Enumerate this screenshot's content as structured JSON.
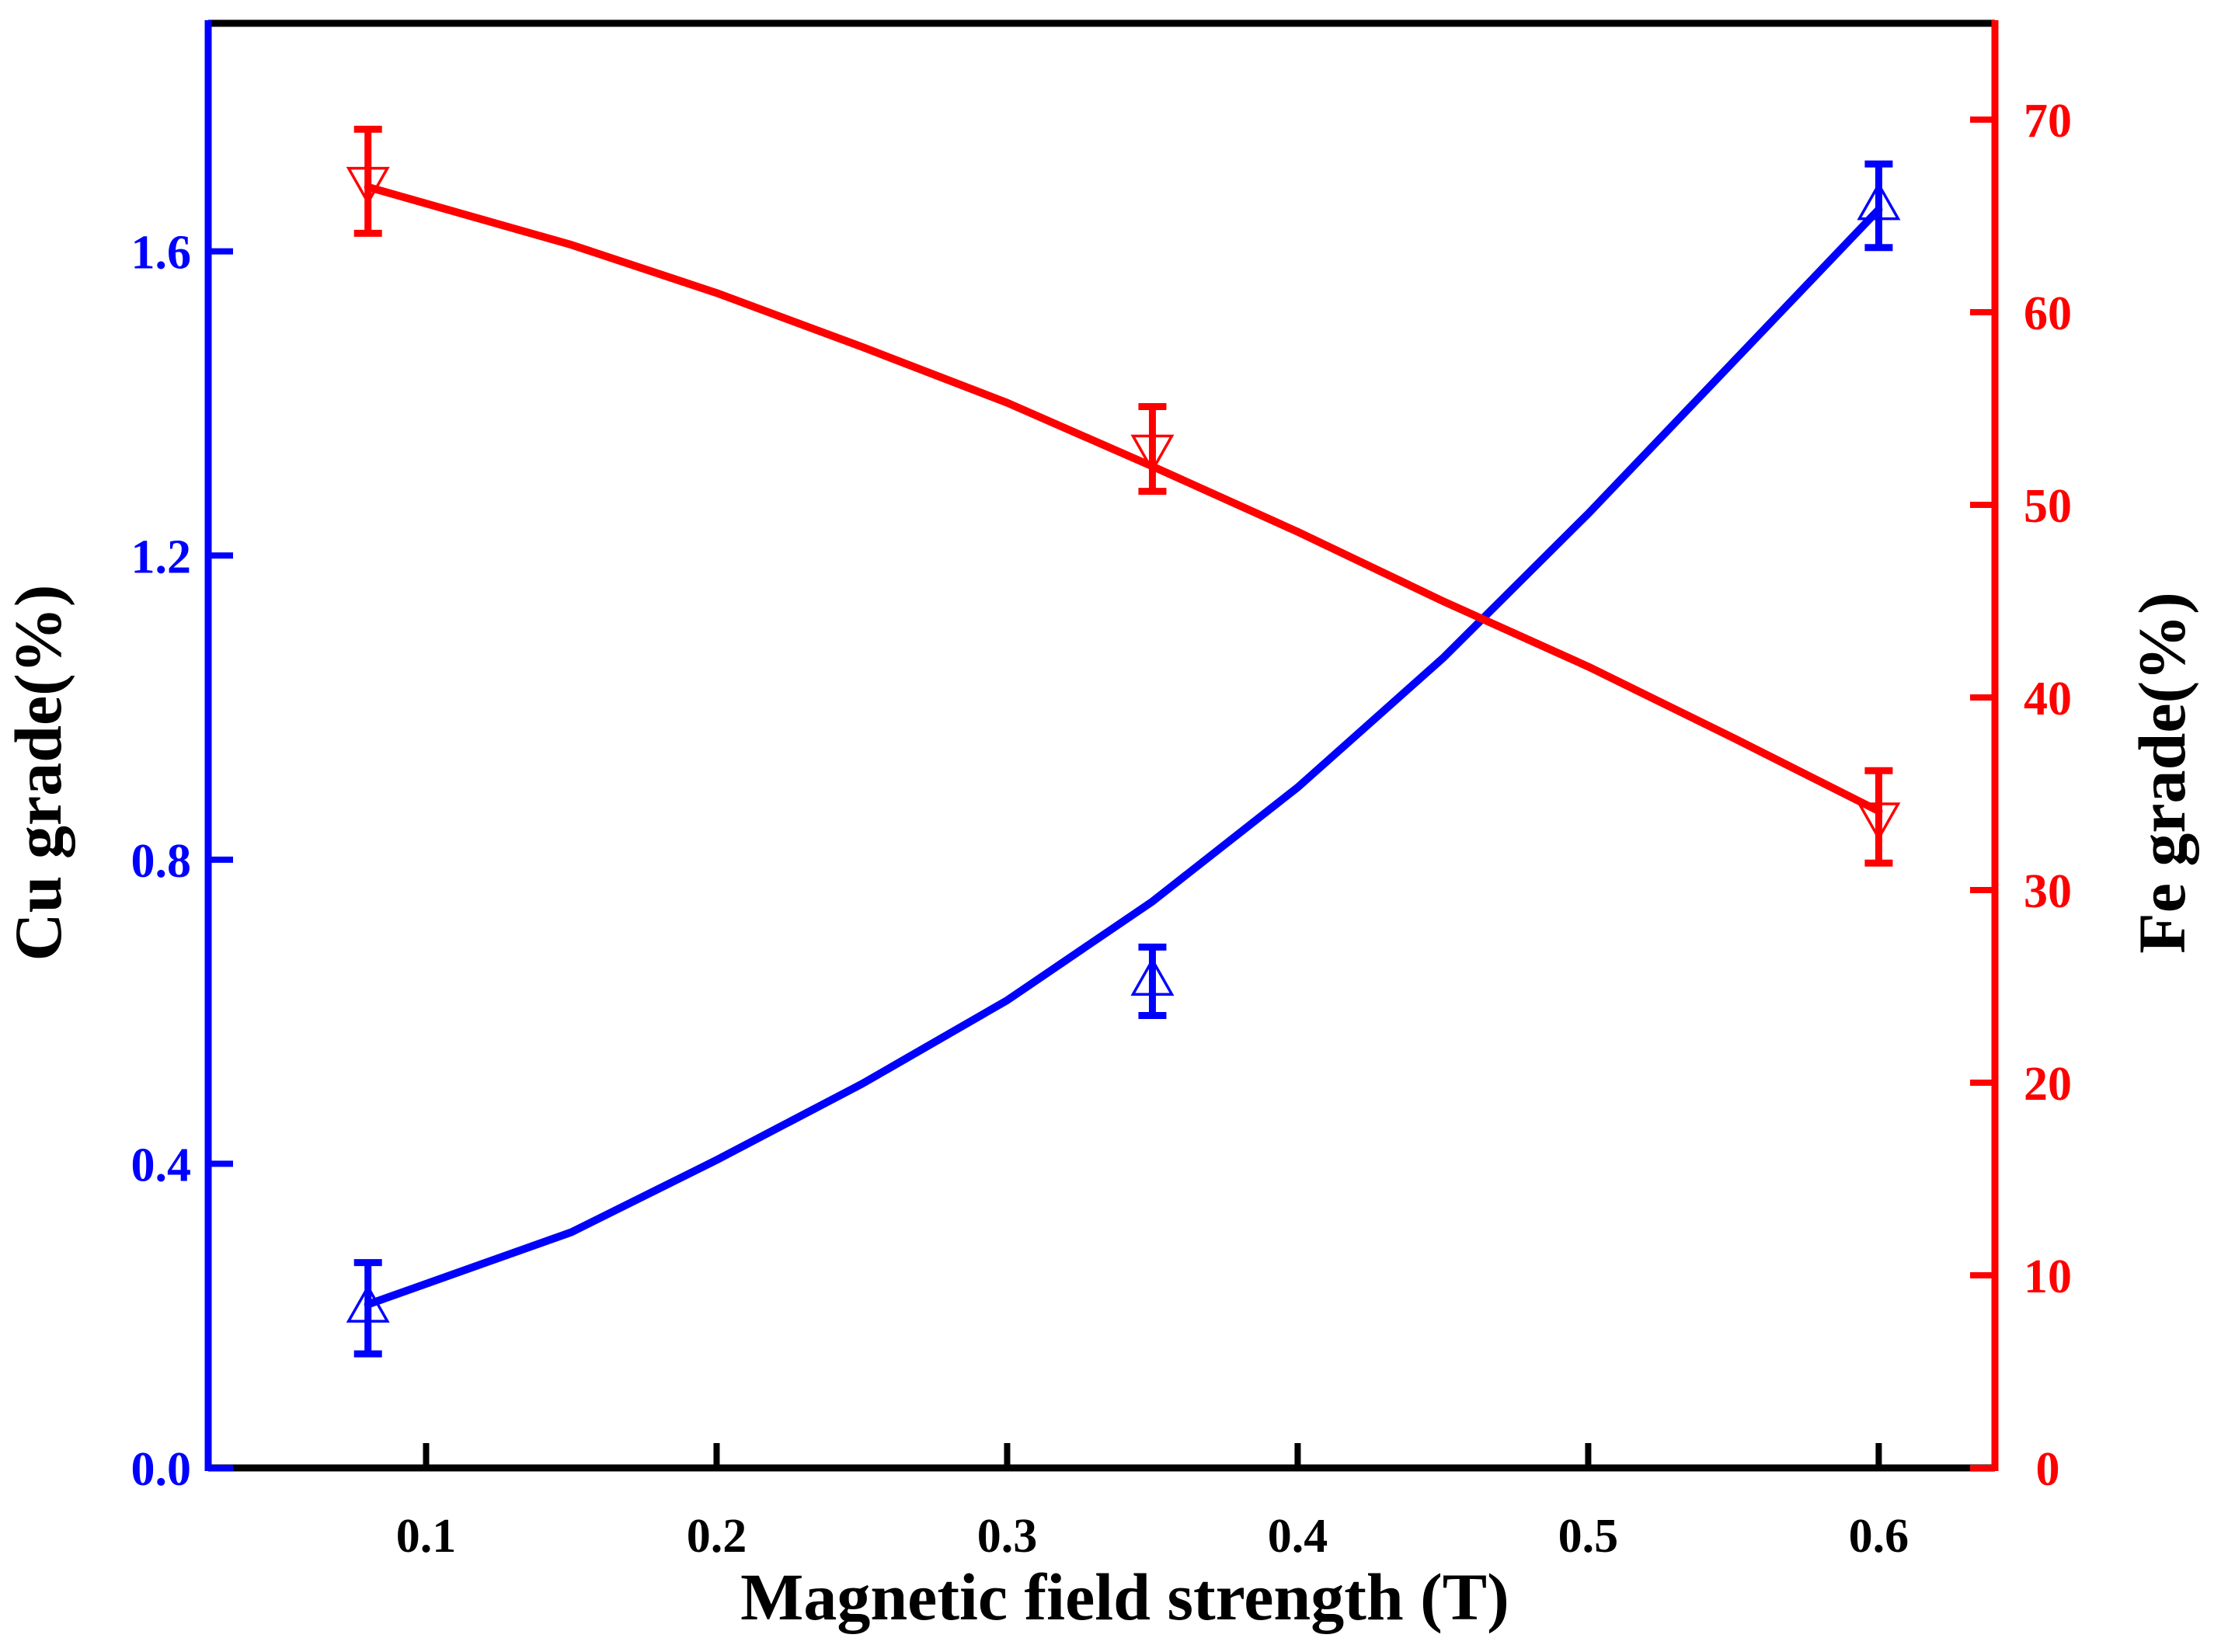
{
  "chart_data": {
    "type": "line",
    "xlabel": "Magnetic field strength (T)",
    "ylabel_left": "Cu grade(%)",
    "ylabel_right": "Fe grade(%)",
    "xlim": [
      0.025,
      0.64
    ],
    "ylim_left": [
      0,
      1.9
    ],
    "ylim_right": [
      0,
      75
    ],
    "x_ticks": [
      0.1,
      0.2,
      0.3,
      0.4,
      0.5,
      0.6
    ],
    "x_tick_labels": [
      "0.1",
      "0.2",
      "0.3",
      "0.4",
      "0.5",
      "0.6"
    ],
    "y_left_ticks": [
      0.0,
      0.4,
      0.8,
      1.2,
      1.6
    ],
    "y_left_tick_labels": [
      "0.0",
      "0.4",
      "0.8",
      "1.2",
      "1.6"
    ],
    "y_right_ticks": [
      0,
      10,
      20,
      30,
      40,
      50,
      60,
      70
    ],
    "y_right_tick_labels": [
      "0",
      "10",
      "20",
      "30",
      "40",
      "50",
      "60",
      "70"
    ],
    "left_color": "#0000ff",
    "right_color": "#ff0000",
    "frame_color": "#000000",
    "series": [
      {
        "name": "Cu grade",
        "axis": "left",
        "color": "#0000ff",
        "marker": "triangle-up",
        "x": [
          0.08,
          0.35,
          0.6
        ],
        "values": [
          0.21,
          0.64,
          1.66
        ],
        "errors": [
          0.06,
          0.045,
          0.055
        ],
        "fit": [
          [
            0.08,
            0.215
          ],
          [
            0.15,
            0.31
          ],
          [
            0.2,
            0.405
          ],
          [
            0.25,
            0.505
          ],
          [
            0.3,
            0.615
          ],
          [
            0.35,
            0.745
          ],
          [
            0.4,
            0.895
          ],
          [
            0.45,
            1.065
          ],
          [
            0.5,
            1.255
          ],
          [
            0.55,
            1.455
          ],
          [
            0.6,
            1.655
          ]
        ]
      },
      {
        "name": "Fe grade",
        "axis": "right",
        "color": "#ff0000",
        "marker": "triangle-down",
        "x": [
          0.08,
          0.35,
          0.6
        ],
        "values": [
          66.8,
          52.9,
          33.8
        ],
        "errors": [
          2.7,
          2.2,
          2.4
        ],
        "fit": [
          [
            0.08,
            66.5
          ],
          [
            0.15,
            63.5
          ],
          [
            0.2,
            61.0
          ],
          [
            0.25,
            58.2
          ],
          [
            0.3,
            55.3
          ],
          [
            0.35,
            52.0
          ],
          [
            0.4,
            48.6
          ],
          [
            0.45,
            45.0
          ],
          [
            0.5,
            41.6
          ],
          [
            0.55,
            37.9
          ],
          [
            0.6,
            34.1
          ]
        ]
      }
    ]
  }
}
